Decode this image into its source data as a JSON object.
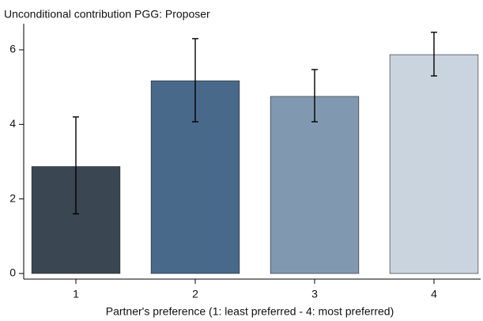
{
  "chart_data": {
    "type": "bar",
    "title": "Unconditional contribution PGG: Proposer",
    "x_label": "Partner's preference (1: least preferred - 4: most preferred)",
    "categories": [
      "1",
      "2",
      "3",
      "4"
    ],
    "values": [
      2.87,
      5.17,
      4.75,
      5.87
    ],
    "ci_low": [
      1.6,
      4.07,
      4.07,
      5.3
    ],
    "ci_high": [
      4.2,
      6.3,
      5.47,
      6.47
    ],
    "colors": [
      "#3a4651",
      "#48698a",
      "#8199b0",
      "#c9d4df"
    ],
    "ylim": [
      -0.15,
      6.7
    ],
    "yticks": [
      0,
      2,
      4,
      6
    ]
  }
}
